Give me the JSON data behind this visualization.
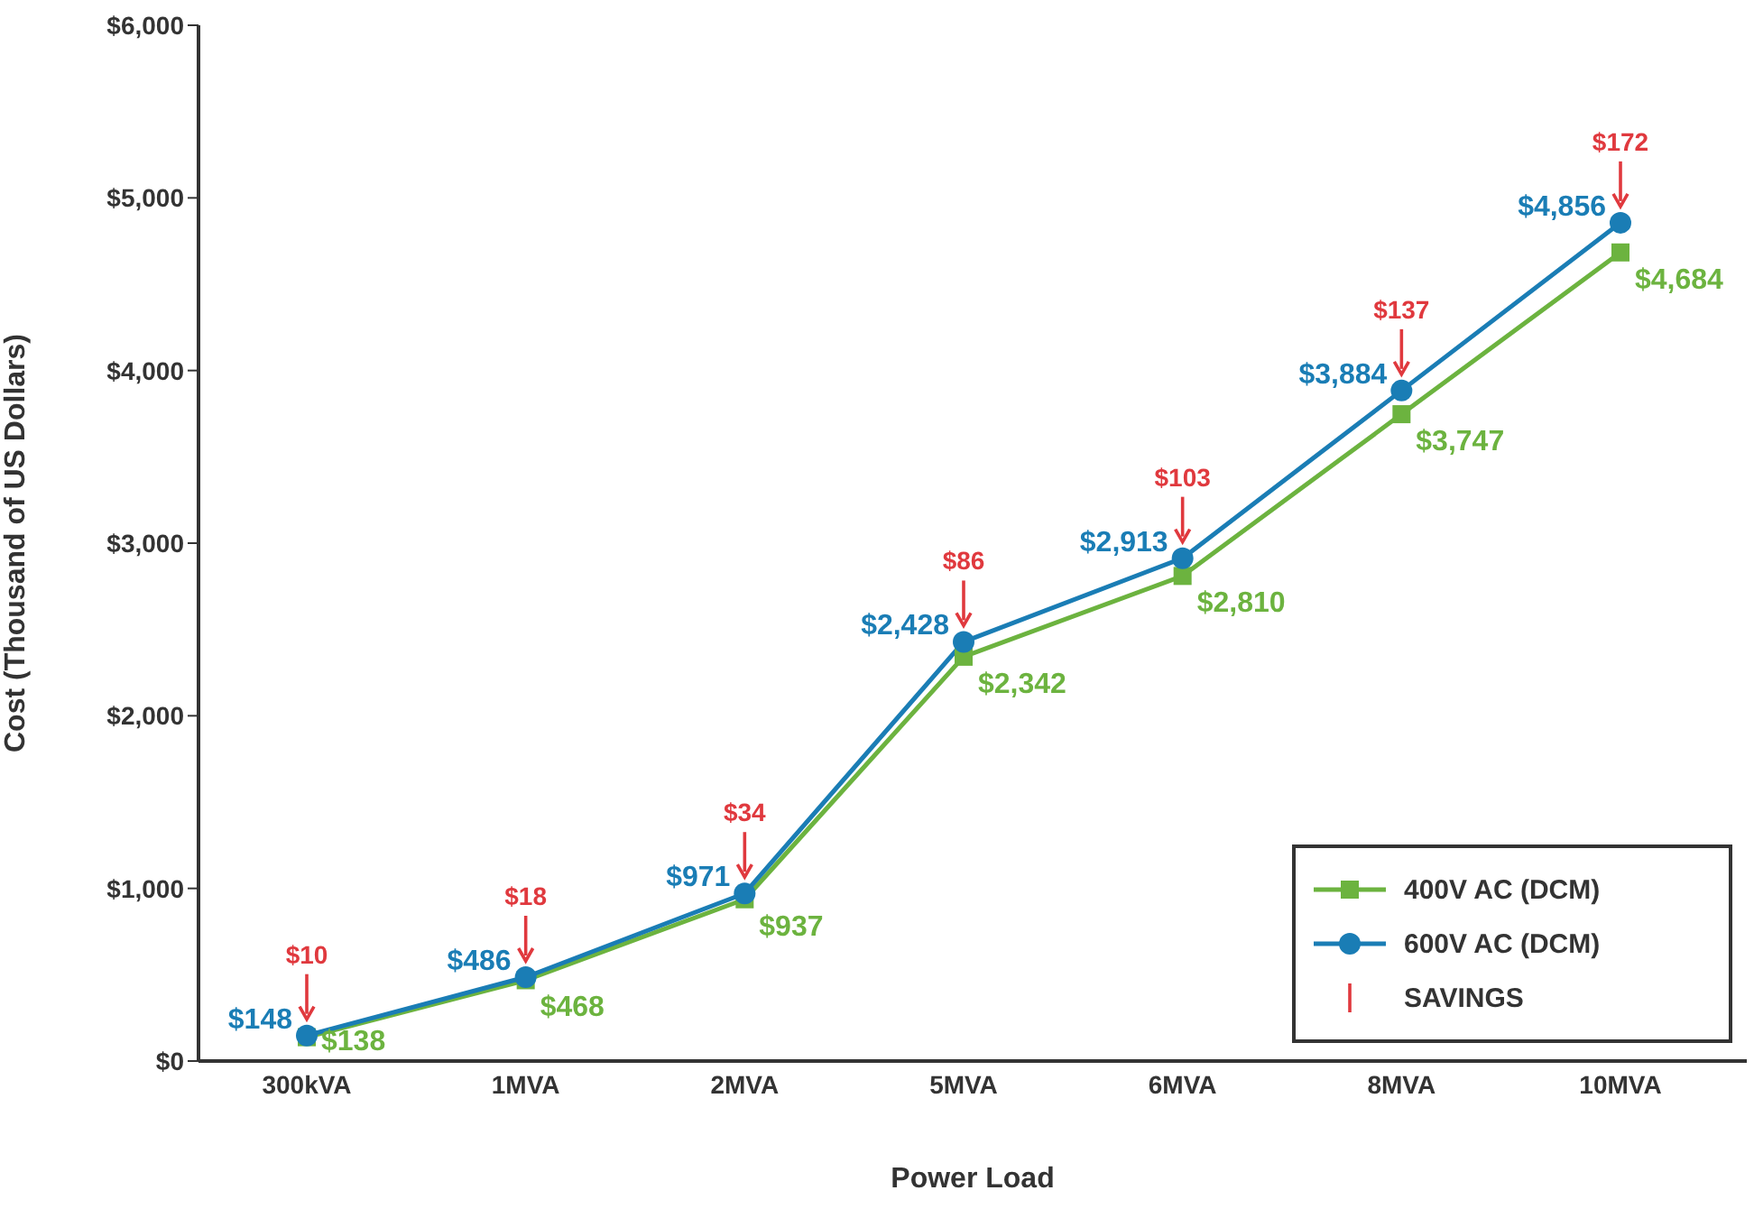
{
  "chart_data": {
    "type": "line",
    "xlabel": "Power Load",
    "ylabel": "Cost (Thousand of US Dollars)",
    "categories": [
      "300kVA",
      "1MVA",
      "2MVA",
      "5MVA",
      "6MVA",
      "8MVA",
      "10MVA"
    ],
    "ylim": [
      0,
      6000
    ],
    "yticks": [
      {
        "value": 0,
        "label": "$0"
      },
      {
        "value": 1000,
        "label": "$1,000"
      },
      {
        "value": 2000,
        "label": "$2,000"
      },
      {
        "value": 3000,
        "label": "$3,000"
      },
      {
        "value": 4000,
        "label": "$4,000"
      },
      {
        "value": 5000,
        "label": "$5,000"
      },
      {
        "value": 6000,
        "label": "$6,000"
      }
    ],
    "series": [
      {
        "name": "400V AC (DCM)",
        "color": "#6cb33f",
        "marker": "square",
        "values": [
          138,
          468,
          937,
          2342,
          2810,
          3747,
          4684
        ],
        "value_labels": [
          "$138",
          "$468",
          "$937",
          "$2,342",
          "$2,810",
          "$3,747",
          "$4,684"
        ]
      },
      {
        "name": "600V AC (DCM)",
        "color": "#1a7db5",
        "marker": "circle",
        "values": [
          148,
          486,
          971,
          2428,
          2913,
          3884,
          4856
        ],
        "value_labels": [
          "$148",
          "$486",
          "$971",
          "$2,428",
          "$2,913",
          "$3,884",
          "$4,856"
        ]
      }
    ],
    "annotations": [
      {
        "text": "$10",
        "x": "300kVA",
        "y": 148
      },
      {
        "text": "$18",
        "x": "1MVA",
        "y": 486
      },
      {
        "text": "$34",
        "x": "2MVA",
        "y": 971
      },
      {
        "text": "$86",
        "x": "5MVA",
        "y": 2428
      },
      {
        "text": "$103",
        "x": "6MVA",
        "y": 2913
      },
      {
        "text": "$137",
        "x": "8MVA",
        "y": 3884
      },
      {
        "text": "$172",
        "x": "10MVA",
        "y": 4856
      },
      "SAVINGS"
    ],
    "legend": "bottom right",
    "line_style": "solid"
  }
}
